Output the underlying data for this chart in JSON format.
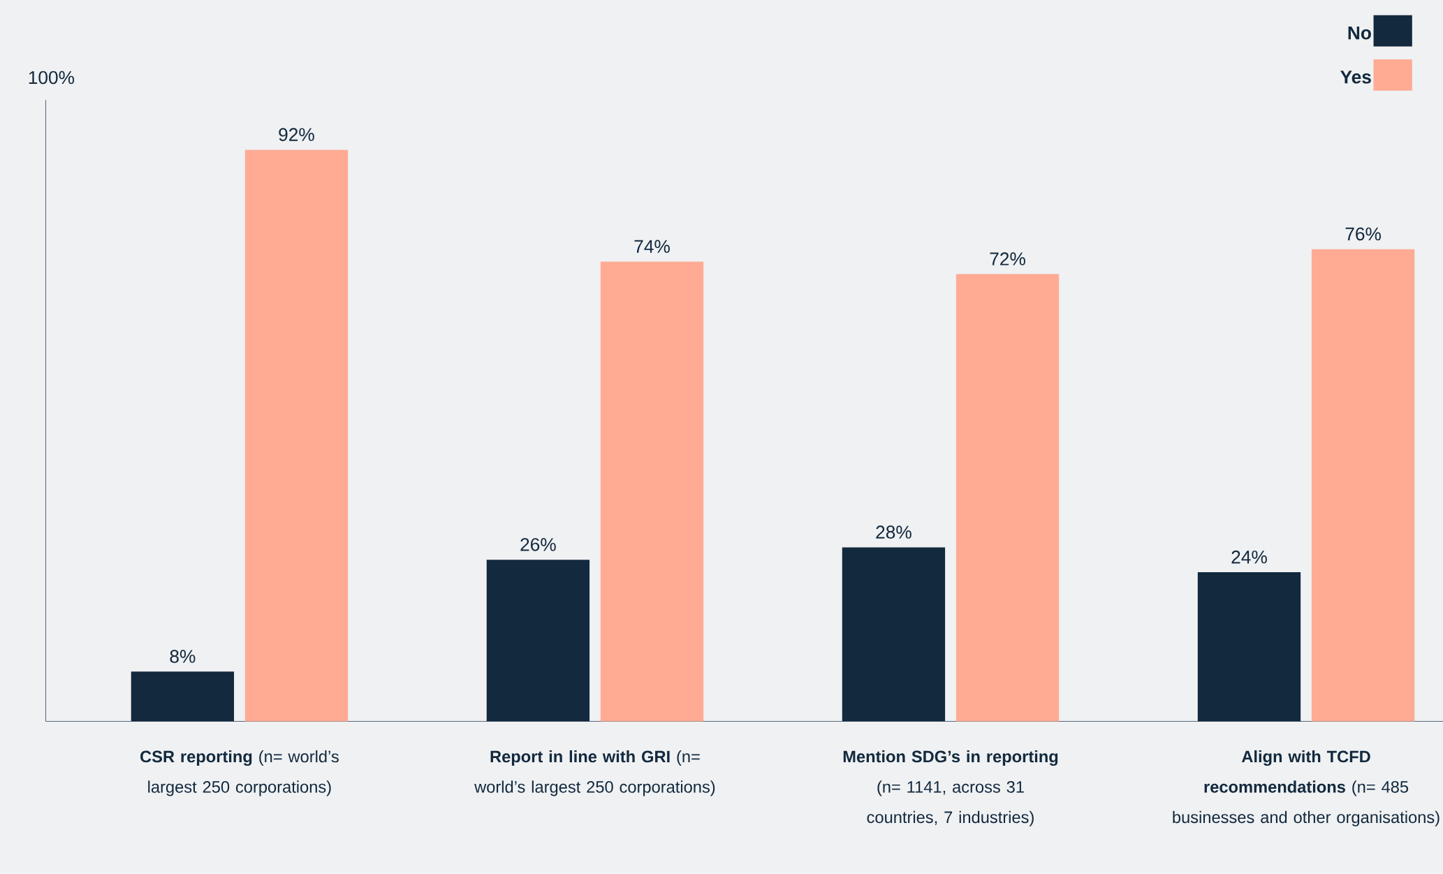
{
  "chart_data": {
    "type": "bar",
    "categories": [
      "**CSR reporting** (n= world’s largest 250 corporations)",
      "**Report in line with GRI** (n= world’s largest 250 corporations)",
      "**Mention SDG’s in reporting** (n= 1141, across 31 countries, 7 industries)",
      "**Align with TCFD recommendations** (n= 485 businesses and  other organisations)"
    ],
    "series": [
      {
        "name": "No",
        "color": "#13293d",
        "values": [
          8,
          26,
          28,
          24
        ],
        "value_labels": [
          "8%",
          "26%",
          "28%",
          "24%"
        ]
      },
      {
        "name": "Yes",
        "color": "#ffab94",
        "values": [
          92,
          74,
          72,
          76
        ],
        "value_labels": [
          "92%",
          "74%",
          "72%",
          "76%"
        ]
      }
    ],
    "ylim": [
      0,
      100
    ],
    "annotations": [
      "100%"
    ],
    "legend": "top right",
    "grid": false
  }
}
